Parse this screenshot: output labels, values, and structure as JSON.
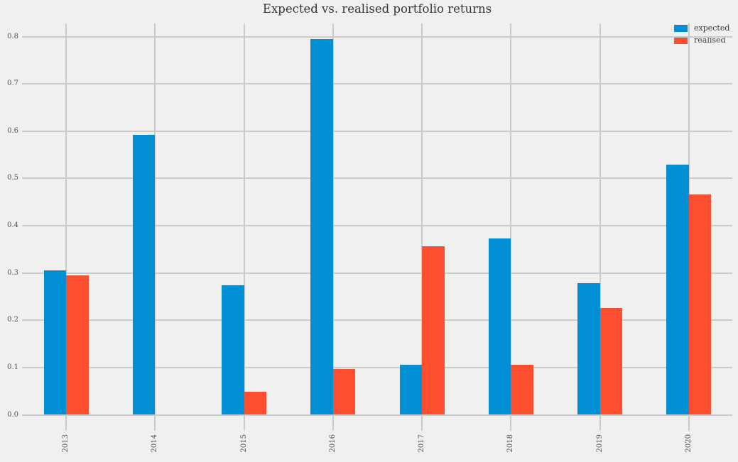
{
  "chart_data": {
    "type": "bar",
    "title": "Expected vs. realised portfolio returns",
    "categories": [
      "2013",
      "2014",
      "2015",
      "2016",
      "2017",
      "2018",
      "2019",
      "2020"
    ],
    "series": [
      {
        "name": "expected",
        "color": "#008fd5",
        "values": [
          0.306,
          0.593,
          0.274,
          0.795,
          0.106,
          0.373,
          0.279,
          0.529
        ]
      },
      {
        "name": "realised",
        "color": "#fc4f30",
        "values": [
          0.295,
          0.0,
          0.049,
          0.097,
          0.357,
          0.106,
          0.226,
          0.466
        ]
      }
    ],
    "xlabel": "",
    "ylabel": "",
    "ylim": [
      0,
      0.828
    ],
    "yticks": [
      "0.0",
      "0.1",
      "0.2",
      "0.3",
      "0.4",
      "0.5",
      "0.6",
      "0.7",
      "0.8"
    ],
    "grid": true,
    "legend_position": "upper right",
    "background_color": "#f0f0f0",
    "gridline_color": "#cbcbcb",
    "x_tick_label_rotation_deg": 90
  }
}
